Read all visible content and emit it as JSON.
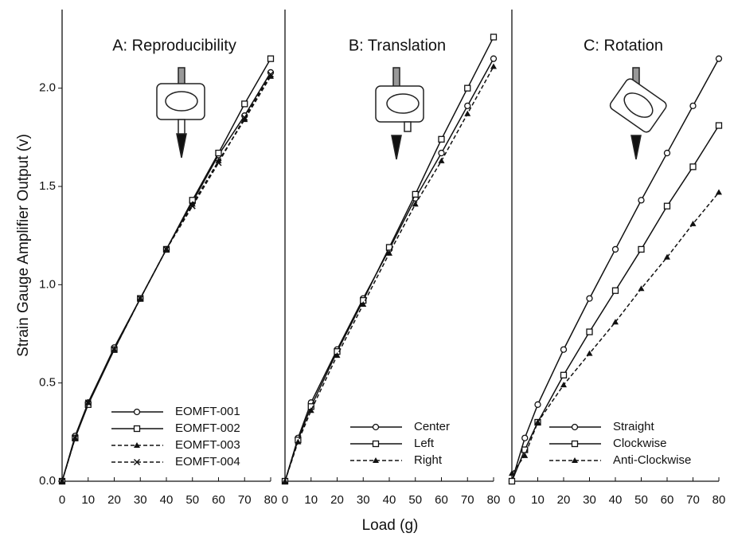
{
  "chart_data": [
    {
      "type": "line",
      "title": "A: Reproducibility",
      "ylabel": "Strain Gauge Amplifier Output (v)",
      "x": [
        0,
        5,
        10,
        20,
        30,
        40,
        50,
        60,
        70,
        80
      ],
      "series": [
        {
          "name": "EOMFT-001",
          "color": "#111111",
          "marker": "circle",
          "dash": false,
          "values": [
            0,
            0.23,
            0.4,
            0.68,
            0.93,
            1.18,
            1.42,
            1.66,
            1.86,
            2.08
          ]
        },
        {
          "name": "EOMFT-002",
          "color": "#111111",
          "marker": "square",
          "dash": false,
          "values": [
            0,
            0.22,
            0.39,
            0.67,
            0.93,
            1.18,
            1.43,
            1.67,
            1.92,
            2.15
          ]
        },
        {
          "name": "EOMFT-003",
          "color": "#111111",
          "marker": "triangle",
          "dash": true,
          "values": [
            0,
            0.22,
            0.4,
            0.67,
            0.93,
            1.18,
            1.41,
            1.63,
            1.84,
            2.06
          ]
        },
        {
          "name": "EOMFT-004",
          "color": "#111111",
          "marker": "cross",
          "dash": true,
          "values": [
            0,
            0.22,
            0.4,
            0.67,
            0.93,
            1.18,
            1.4,
            1.62,
            1.85,
            2.07
          ]
        }
      ],
      "xlim": [
        0,
        80
      ],
      "xticks": [
        0,
        10,
        20,
        30,
        40,
        50,
        60,
        70,
        80
      ],
      "ylim": [
        0,
        2.4
      ],
      "yticks": [
        {
          "value": 0,
          "label": "0.0"
        },
        0.5,
        {
          "value": 1,
          "label": "1.0"
        },
        1.5,
        {
          "value": 2,
          "label": "2.0"
        }
      ],
      "legend": "lower right"
    },
    {
      "type": "line",
      "title": "B: Translation",
      "xlabel": "Load (g)",
      "x": [
        0,
        5,
        10,
        20,
        30,
        40,
        50,
        60,
        70,
        80
      ],
      "series": [
        {
          "name": "Center",
          "color": "#111111",
          "marker": "circle",
          "dash": false,
          "values": [
            0,
            0.22,
            0.4,
            0.67,
            0.93,
            1.18,
            1.44,
            1.67,
            1.91,
            2.15
          ]
        },
        {
          "name": "Left",
          "color": "#111111",
          "marker": "square",
          "dash": false,
          "values": [
            0,
            0.21,
            0.38,
            0.66,
            0.92,
            1.19,
            1.46,
            1.74,
            2.0,
            2.26
          ]
        },
        {
          "name": "Right",
          "color": "#111111",
          "marker": "triangle",
          "dash": true,
          "values": [
            0,
            0.2,
            0.36,
            0.64,
            0.9,
            1.16,
            1.41,
            1.63,
            1.87,
            2.11
          ]
        }
      ],
      "xlim": [
        0,
        80
      ],
      "xticks": [
        0,
        10,
        20,
        30,
        40,
        50,
        60,
        70,
        80
      ],
      "ylim": [
        0,
        2.4
      ],
      "legend": "lower right"
    },
    {
      "type": "line",
      "title": "C: Rotation",
      "x": [
        0,
        5,
        10,
        20,
        30,
        40,
        50,
        60,
        70,
        80
      ],
      "series": [
        {
          "name": "Straight",
          "color": "#111111",
          "marker": "circle",
          "dash": false,
          "values": [
            0,
            0.22,
            0.39,
            0.67,
            0.93,
            1.18,
            1.43,
            1.67,
            1.91,
            2.15
          ]
        },
        {
          "name": "Clockwise",
          "color": "#111111",
          "marker": "square",
          "dash": false,
          "values": [
            0,
            0.16,
            0.3,
            0.54,
            0.76,
            0.97,
            1.18,
            1.4,
            1.6,
            1.81
          ]
        },
        {
          "name": "Anti-Clockwise",
          "color": "#111111",
          "marker": "triangle",
          "dash": true,
          "values": [
            0.04,
            0.13,
            0.3,
            0.49,
            0.65,
            0.81,
            0.98,
            1.14,
            1.31,
            1.47
          ]
        }
      ],
      "xlim": [
        0,
        80
      ],
      "xticks": [
        0,
        10,
        20,
        30,
        40,
        50,
        60,
        70,
        80
      ],
      "ylim": [
        0,
        2.4
      ],
      "legend": "lower right"
    }
  ]
}
